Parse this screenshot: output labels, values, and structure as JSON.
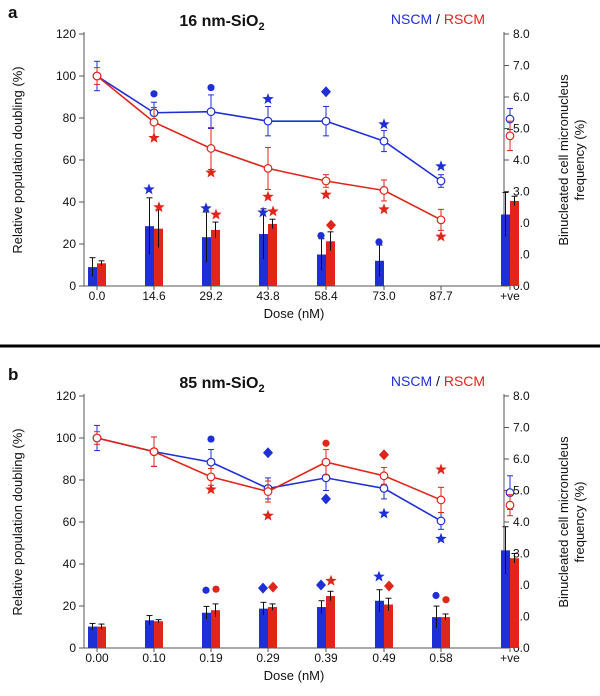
{
  "colors": {
    "nscm": "#1f2fd6",
    "rscm": "#e0251b",
    "axis": "#555555",
    "text": "#111111"
  },
  "legend": {
    "nscm": "NSCM",
    "sep": " / ",
    "rscm": "RSCM",
    "placement": "top-right"
  },
  "chart_data": [
    {
      "panel_label": "a",
      "title_main": "16 nm-SiO",
      "title_sub": "2",
      "type": "bar+line",
      "categories": [
        "0.0",
        "14.6",
        "29.2",
        "43.8",
        "58.4",
        "73.0",
        "87.7",
        "+ve"
      ],
      "xlabel": "Dose (nM)",
      "ylabel_left": "Relative population doubling (%)",
      "ylabel_right_1": "Binucleated cell micronucleus",
      "ylabel_right_2": "frequency (%)",
      "ylim_left": [
        0,
        120
      ],
      "yticks_left": [
        "0",
        "20",
        "40",
        "60",
        "80",
        "100",
        "120"
      ],
      "ylim_right": [
        0,
        8
      ],
      "yticks_right": [
        "0.0",
        "1.0",
        "2.0",
        "3.0",
        "4.0",
        "5.0",
        "6.0",
        "7.0",
        "8.0"
      ],
      "bars": {
        "nscm": {
          "values": [
            0.6,
            1.9,
            1.55,
            1.65,
            1.0,
            0.8,
            null,
            2.27
          ],
          "errors": [
            0.3,
            0.9,
            0.8,
            0.8,
            0.5,
            0.5,
            null,
            0.7
          ]
        },
        "rscm": {
          "values": [
            0.72,
            1.82,
            1.78,
            1.97,
            1.42,
            null,
            null,
            2.7
          ],
          "errors": [
            0.08,
            0.6,
            0.25,
            0.15,
            0.3,
            null,
            null,
            0.15
          ]
        }
      },
      "lines": {
        "nscm": {
          "values": [
            100,
            82.5,
            83,
            78.5,
            78.5,
            69,
            50,
            null
          ],
          "errors": [
            7,
            5,
            8,
            7,
            7,
            5,
            3,
            null
          ]
        },
        "rscm": {
          "values": [
            100,
            78,
            65.5,
            56,
            50,
            45.5,
            31.5,
            null
          ],
          "errors": [
            4,
            7,
            10,
            10,
            3,
            5,
            5,
            null
          ]
        }
      },
      "positive_control": {
        "nscm": {
          "value": 79.5,
          "error": 5
        },
        "rscm": {
          "value": 71.5,
          "error": 7
        }
      },
      "markers": [
        {
          "cat": 1,
          "y": 91.5,
          "shape": "circle",
          "color": "nscm"
        },
        {
          "cat": 2,
          "y": 94.5,
          "shape": "circle",
          "color": "nscm"
        },
        {
          "cat": 3,
          "y": 89,
          "shape": "star",
          "color": "nscm"
        },
        {
          "cat": 4,
          "y": 92.5,
          "shape": "diamond",
          "color": "nscm"
        },
        {
          "cat": 5,
          "y": 77,
          "shape": "star",
          "color": "nscm"
        },
        {
          "cat": 6,
          "y": 57,
          "shape": "star",
          "color": "nscm"
        },
        {
          "cat": 1,
          "y": 70.5,
          "shape": "star",
          "color": "rscm"
        },
        {
          "cat": 2,
          "y": 54,
          "shape": "star",
          "color": "rscm"
        },
        {
          "cat": 3,
          "y": 42.5,
          "shape": "star",
          "color": "rscm"
        },
        {
          "cat": 4,
          "y": 43.5,
          "shape": "star",
          "color": "rscm"
        },
        {
          "cat": 5,
          "y": 36.5,
          "shape": "star",
          "color": "rscm"
        },
        {
          "cat": 6,
          "y": 23.5,
          "shape": "star",
          "color": "rscm"
        },
        {
          "cat": 1,
          "y": 46,
          "shape": "star",
          "color": "nscm",
          "offset": -1
        },
        {
          "cat": 1,
          "y": 37.5,
          "shape": "star",
          "color": "rscm",
          "offset": 1
        },
        {
          "cat": 2,
          "y": 37,
          "shape": "star",
          "color": "nscm",
          "offset": -1
        },
        {
          "cat": 2,
          "y": 34,
          "shape": "star",
          "color": "rscm",
          "offset": 1
        },
        {
          "cat": 3,
          "y": 35,
          "shape": "star",
          "color": "nscm",
          "offset": -1
        },
        {
          "cat": 3,
          "y": 35.5,
          "shape": "star",
          "color": "rscm",
          "offset": 1
        },
        {
          "cat": 4,
          "y": 24,
          "shape": "circle",
          "color": "nscm",
          "offset": -1
        },
        {
          "cat": 4,
          "y": 29,
          "shape": "diamond",
          "color": "rscm",
          "offset": 1
        },
        {
          "cat": 5,
          "y": 21,
          "shape": "circle",
          "color": "nscm",
          "offset": -1
        }
      ]
    },
    {
      "panel_label": "b",
      "title_main": "85 nm-SiO",
      "title_sub": "2",
      "type": "bar+line",
      "categories": [
        "0.00",
        "0.10",
        "0.19",
        "0.29",
        "0.39",
        "0.49",
        "0.58",
        "+ve"
      ],
      "xlabel": "Dose (nM)",
      "ylabel_left": "Relative population doubling (%)",
      "ylabel_right_1": "Binucleated cell micronucleus",
      "ylabel_right_2": "frequency (%)",
      "ylim_left": [
        0,
        120
      ],
      "yticks_left": [
        "0",
        "20",
        "40",
        "60",
        "80",
        "100",
        "120"
      ],
      "ylim_right": [
        0,
        8
      ],
      "yticks_right": [
        "0.0",
        "1.0",
        "2.0",
        "3.0",
        "4.0",
        "5.0",
        "6.0",
        "7.0",
        "8.0"
      ],
      "bars": {
        "nscm": {
          "values": [
            0.68,
            0.88,
            1.12,
            1.25,
            1.3,
            1.5,
            0.98,
            3.1
          ],
          "errors": [
            0.1,
            0.15,
            0.2,
            0.2,
            0.2,
            0.35,
            0.35,
            0.75
          ]
        },
        "rscm": {
          "values": [
            0.68,
            0.85,
            1.2,
            1.3,
            1.65,
            1.38,
            0.98,
            2.85
          ],
          "errors": [
            0.08,
            0.05,
            0.2,
            0.1,
            0.15,
            0.2,
            0.1,
            0.15
          ]
        }
      },
      "lines": {
        "nscm": {
          "values": [
            100,
            93.5,
            88.5,
            76,
            81,
            76,
            60.5,
            null
          ],
          "errors": [
            6,
            7,
            6,
            5,
            6,
            5,
            4,
            null
          ]
        },
        "rscm": {
          "values": [
            100,
            93.5,
            81.5,
            74.5,
            88.5,
            82,
            70.5,
            null
          ],
          "errors": [
            3,
            7,
            4,
            5,
            6,
            4,
            6,
            null
          ]
        }
      },
      "positive_control": {
        "nscm": {
          "value": 74,
          "error": 8
        },
        "rscm": {
          "value": 68,
          "error": 5
        }
      },
      "markers": [
        {
          "cat": 2,
          "y": 99.5,
          "shape": "circle",
          "color": "nscm"
        },
        {
          "cat": 3,
          "y": 93,
          "shape": "diamond",
          "color": "nscm"
        },
        {
          "cat": 4,
          "y": 71,
          "shape": "diamond",
          "color": "nscm"
        },
        {
          "cat": 5,
          "y": 64,
          "shape": "star",
          "color": "nscm"
        },
        {
          "cat": 6,
          "y": 52,
          "shape": "star",
          "color": "nscm"
        },
        {
          "cat": 2,
          "y": 75.5,
          "shape": "star",
          "color": "rscm"
        },
        {
          "cat": 3,
          "y": 63,
          "shape": "star",
          "color": "rscm"
        },
        {
          "cat": 4,
          "y": 97.5,
          "shape": "circle",
          "color": "rscm"
        },
        {
          "cat": 5,
          "y": 92,
          "shape": "diamond",
          "color": "rscm"
        },
        {
          "cat": 6,
          "y": 85,
          "shape": "star",
          "color": "rscm"
        },
        {
          "cat": 2,
          "y": 27.5,
          "shape": "circle",
          "color": "nscm",
          "offset": -1
        },
        {
          "cat": 2,
          "y": 28,
          "shape": "circle",
          "color": "rscm",
          "offset": 1
        },
        {
          "cat": 3,
          "y": 28.5,
          "shape": "diamond",
          "color": "nscm",
          "offset": -1
        },
        {
          "cat": 3,
          "y": 29,
          "shape": "diamond",
          "color": "rscm",
          "offset": 1
        },
        {
          "cat": 4,
          "y": 30,
          "shape": "diamond",
          "color": "nscm",
          "offset": -1
        },
        {
          "cat": 4,
          "y": 32,
          "shape": "star",
          "color": "rscm",
          "offset": 1
        },
        {
          "cat": 5,
          "y": 34,
          "shape": "star",
          "color": "nscm",
          "offset": -1
        },
        {
          "cat": 5,
          "y": 29.5,
          "shape": "diamond",
          "color": "rscm",
          "offset": 1
        },
        {
          "cat": 6,
          "y": 25,
          "shape": "circle",
          "color": "nscm",
          "offset": -1
        },
        {
          "cat": 6,
          "y": 23,
          "shape": "circle",
          "color": "rscm",
          "offset": 1
        }
      ]
    }
  ]
}
